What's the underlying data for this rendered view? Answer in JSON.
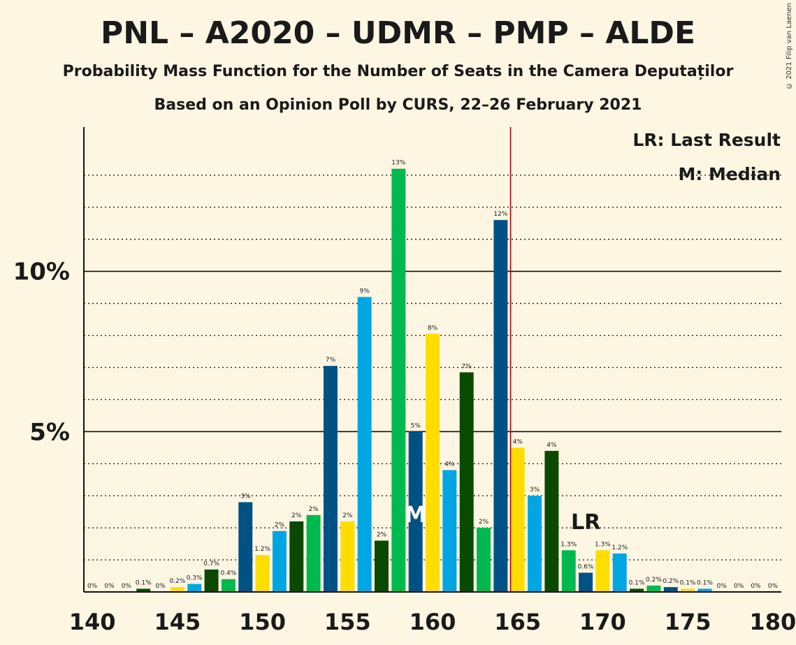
{
  "title": "PNL – A2020 – UDMR – PMP – ALDE",
  "subtitle": "Probability Mass Function for the Number of Seats in the Camera Deputaților",
  "subtitle2": "Based on an Opinion Poll by CURS, 22–26 February 2021",
  "copyright": "© 2021 Filip van Laenen",
  "legend": {
    "lr": "LR: Last Result",
    "median": "M: Median"
  },
  "markers": {
    "lr_label": "LR",
    "median_label": "M",
    "last_result_seat": 164.5,
    "median_seat": 159
  },
  "colors": {
    "dark_blue": "#005285",
    "light_blue": "#00A6E2",
    "yellow": "#FFDD00",
    "dark_green": "#0A4A00",
    "green": "#00B94E",
    "lr_line": "#B00000",
    "background": "#FDF6E3"
  },
  "chart_data": {
    "type": "bar",
    "x": [
      140,
      141,
      142,
      143,
      144,
      145,
      146,
      147,
      148,
      149,
      150,
      151,
      152,
      153,
      154,
      155,
      156,
      157,
      158,
      159,
      160,
      161,
      162,
      163,
      164,
      165,
      166,
      167,
      168,
      169,
      170,
      171,
      172,
      173,
      174,
      175,
      176,
      177,
      178,
      179,
      180
    ],
    "values": [
      0,
      0,
      0,
      0.1,
      0,
      0.15,
      0.25,
      0.7,
      0.4,
      2.8,
      1.15,
      1.9,
      2.2,
      2.4,
      7.05,
      2.2,
      9.2,
      1.6,
      13.2,
      5.0,
      8.05,
      3.8,
      6.85,
      2.0,
      11.6,
      4.5,
      3.0,
      4.4,
      1.3,
      0.6,
      1.3,
      1.2,
      0.1,
      0.2,
      0.15,
      0.1,
      0.1,
      0,
      0,
      0,
      0
    ],
    "labels": [
      "0%",
      "0%",
      "0%",
      "0.1%",
      "0%",
      "0.2%",
      "0.3%",
      "0.7%",
      "0.4%",
      "3%",
      "1.2%",
      "2%",
      "2%",
      "2%",
      "7%",
      "2%",
      "9%",
      "2%",
      "13%",
      "5%",
      "8%",
      "4%",
      "7%",
      "2%",
      "12%",
      "4%",
      "3%",
      "4%",
      "1.3%",
      "0.6%",
      "1.3%",
      "1.2%",
      "0.1%",
      "0.2%",
      "0.2%",
      "0.1%",
      "0.1%",
      "0%",
      "0%",
      "0%",
      "0%"
    ],
    "bar_colors": [
      "dark_blue",
      "light_blue",
      "yellow",
      "dark_green",
      "green",
      "yellow",
      "light_blue",
      "dark_green",
      "green",
      "dark_blue",
      "yellow",
      "light_blue",
      "dark_green",
      "green",
      "dark_blue",
      "yellow",
      "light_blue",
      "dark_green",
      "green",
      "dark_blue",
      "yellow",
      "light_blue",
      "dark_green",
      "green",
      "dark_blue",
      "yellow",
      "light_blue",
      "dark_green",
      "green",
      "dark_blue",
      "yellow",
      "light_blue",
      "dark_green",
      "green",
      "dark_blue",
      "yellow",
      "light_blue",
      "dark_green",
      "green",
      "dark_blue",
      "yellow"
    ],
    "x_ticks": [
      140,
      145,
      150,
      155,
      160,
      165,
      170,
      175,
      180
    ],
    "x_tick_labels": [
      "140",
      "145",
      "150",
      "155",
      "160",
      "165",
      "170",
      "175",
      "180"
    ],
    "y_ticks": [
      5,
      10
    ],
    "y_tick_labels": [
      "5%",
      "10%"
    ],
    "ylim": [
      0,
      14.5
    ],
    "xlim": [
      139.5,
      180.5
    ],
    "grid": true
  }
}
